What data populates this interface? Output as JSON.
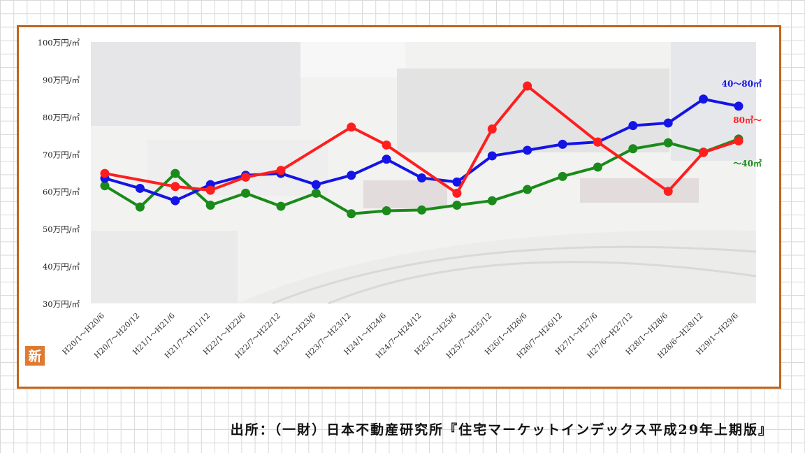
{
  "chart_data": {
    "type": "line",
    "y_ticks": [
      "100万円/㎡",
      "90万円/㎡",
      "80万円/㎡",
      "70万円/㎡",
      "60万円/㎡",
      "50万円/㎡",
      "40万円/㎡",
      "30万円/㎡"
    ],
    "ylim": [
      30,
      100
    ],
    "categories": [
      "H20/1～H20/6",
      "H20/7～H20/12",
      "H21/1～H21/6",
      "H21/7～H21/12",
      "H22/1～H22/6",
      "H22/7～H22/12",
      "H23/1～H23/6",
      "H23/7～H23/12",
      "H24/1～H24/6",
      "H24/7～H24/12",
      "H25/1～H25/6",
      "H25/7～H25/12",
      "H26/1～H26/6",
      "H26/7～H26/12",
      "H27/1～H27/6",
      "H27/6～H27/12",
      "H28/1～H28/6",
      "H28/6～H28/12",
      "H29/1～H29/6"
    ],
    "series": [
      {
        "name": "40～80㎡",
        "color": "#1414e6",
        "values": [
          63.5,
          60.8,
          57.5,
          61.8,
          64.3,
          64.8,
          61.8,
          64.3,
          68.6,
          63.6,
          62.5,
          69.5,
          71.0,
          72.6,
          73.2,
          77.6,
          78.3,
          84.7,
          82.8
        ]
      },
      {
        "name": "80㎡～",
        "color": "#ff1e1e",
        "values": [
          64.8,
          null,
          61.3,
          60.3,
          63.8,
          65.6,
          null,
          77.2,
          72.4,
          null,
          59.5,
          76.7,
          88.2,
          null,
          73.2,
          null,
          60.0,
          70.4,
          73.5
        ]
      },
      {
        "name": "～40㎡",
        "color": "#1a8a1a",
        "values": [
          61.5,
          55.8,
          64.8,
          56.3,
          59.5,
          56.0,
          59.5,
          54.0,
          54.8,
          55.0,
          56.3,
          57.5,
          60.5,
          64.0,
          66.5,
          71.4,
          73.0,
          70.5,
          74.0
        ]
      }
    ]
  },
  "logo_text": "新",
  "source": "出所：（一財）日本不動産研究所『住宅マーケットインデックス平成29年上期版』"
}
